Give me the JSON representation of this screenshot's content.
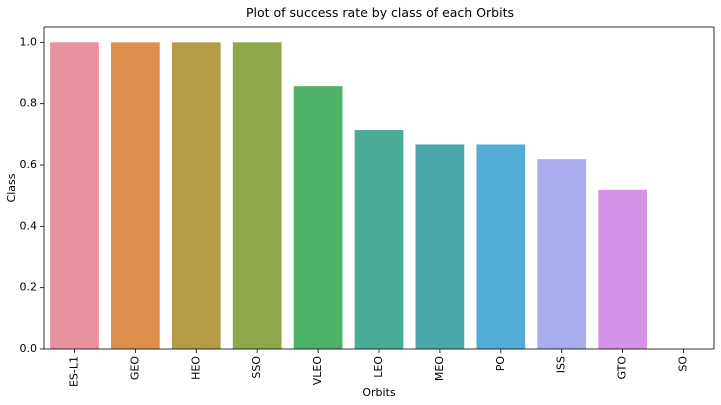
{
  "chart_data": {
    "type": "bar",
    "title": "Plot of success rate by class of each Orbits",
    "xlabel": "Orbits",
    "ylabel": "Class",
    "categories": [
      "ES-L1",
      "GEO",
      "HEO",
      "SSO",
      "VLEO",
      "LEO",
      "MEO",
      "PO",
      "ISS",
      "GTO",
      "SO"
    ],
    "values": [
      1.0,
      1.0,
      1.0,
      1.0,
      0.857,
      0.714,
      0.667,
      0.667,
      0.619,
      0.519,
      0.0
    ],
    "colors": [
      "#e8919f",
      "#dc8f4e",
      "#b59b47",
      "#8fa64a",
      "#4db268",
      "#4aab96",
      "#4aa8ad",
      "#52acd6",
      "#a9aded",
      "#d593e8",
      "#e88fc3"
    ],
    "ylim": [
      0,
      1.05
    ],
    "yticks": [
      "0.0",
      "0.2",
      "0.4",
      "0.6",
      "0.8",
      "1.0"
    ],
    "grid": false,
    "legend": "none"
  }
}
